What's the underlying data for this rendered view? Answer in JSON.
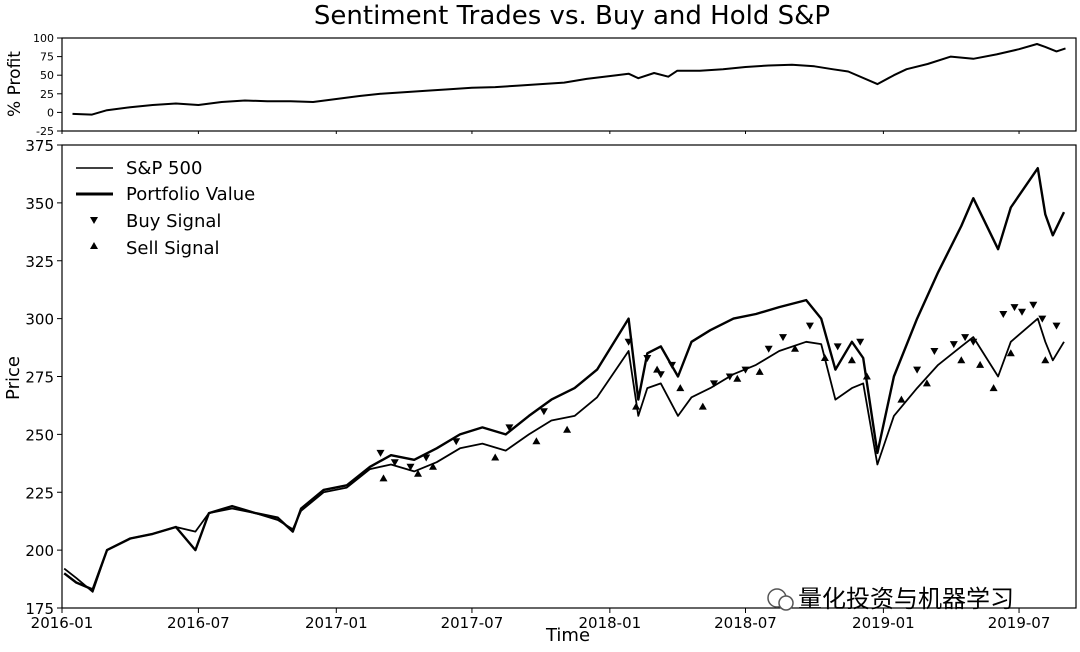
{
  "figure": {
    "title": "Sentiment Trades vs. Buy and Hold S&P",
    "watermark": "量化投资与机器学习"
  },
  "chart_data": [
    {
      "type": "line",
      "panel": "top",
      "ylabel": "% Profit",
      "xlabel": "",
      "ylim": [
        -25,
        100
      ],
      "yticks": [
        -25,
        0,
        25,
        50,
        75,
        100
      ],
      "xlim": [
        "2016-01-01",
        "2019-09-15"
      ],
      "x_tick_labels": "illegible",
      "grid": false,
      "series": [
        {
          "name": "% Profit",
          "x": [
            "2016-01-15",
            "2016-02-10",
            "2016-03-01",
            "2016-04-01",
            "2016-05-01",
            "2016-06-01",
            "2016-07-01",
            "2016-08-01",
            "2016-09-01",
            "2016-10-01",
            "2016-11-01",
            "2016-12-01",
            "2017-01-01",
            "2017-02-01",
            "2017-03-01",
            "2017-04-01",
            "2017-05-01",
            "2017-06-01",
            "2017-07-01",
            "2017-08-01",
            "2017-09-01",
            "2017-10-01",
            "2017-11-01",
            "2017-12-01",
            "2018-01-10",
            "2018-01-26",
            "2018-02-08",
            "2018-03-01",
            "2018-03-20",
            "2018-04-01",
            "2018-05-01",
            "2018-06-01",
            "2018-07-01",
            "2018-08-01",
            "2018-09-01",
            "2018-10-01",
            "2018-10-25",
            "2018-11-15",
            "2018-12-24",
            "2019-01-15",
            "2019-02-01",
            "2019-03-01",
            "2019-04-01",
            "2019-05-01",
            "2019-06-01",
            "2019-07-01",
            "2019-07-25",
            "2019-08-05",
            "2019-08-20",
            "2019-09-01"
          ],
          "values": [
            -2,
            -3,
            3,
            7,
            10,
            12,
            10,
            14,
            16,
            15,
            15,
            14,
            18,
            22,
            25,
            27,
            29,
            31,
            33,
            34,
            36,
            38,
            40,
            45,
            50,
            52,
            46,
            53,
            48,
            56,
            56,
            58,
            61,
            63,
            64,
            62,
            58,
            55,
            38,
            50,
            58,
            65,
            75,
            72,
            78,
            85,
            92,
            88,
            82,
            86
          ]
        }
      ]
    },
    {
      "type": "line",
      "panel": "bottom",
      "xlabel": "Time",
      "ylabel": "Price",
      "ylim": [
        175,
        375
      ],
      "yticks": [
        175,
        200,
        225,
        250,
        275,
        300,
        325,
        350,
        375
      ],
      "xlim": [
        "2016-01-01",
        "2019-09-15"
      ],
      "x_tick_labels": [
        "2016-01",
        "2016-07",
        "2017-01",
        "2017-07",
        "2018-01",
        "2018-07",
        "2019-01",
        "2019-07"
      ],
      "grid": false,
      "legend_position": "upper-left",
      "legend": [
        "S&P 500",
        "Portfolio Value",
        "Buy Signal",
        "Sell Signal"
      ],
      "series": [
        {
          "name": "S&P 500",
          "x": [
            "2016-01-04",
            "2016-01-20",
            "2016-02-11",
            "2016-03-01",
            "2016-04-01",
            "2016-05-01",
            "2016-06-01",
            "2016-06-27",
            "2016-07-15",
            "2016-08-15",
            "2016-09-15",
            "2016-10-15",
            "2016-11-04",
            "2016-11-15",
            "2016-12-15",
            "2017-01-15",
            "2017-02-15",
            "2017-03-15",
            "2017-04-15",
            "2017-05-15",
            "2017-06-15",
            "2017-07-15",
            "2017-08-15",
            "2017-09-15",
            "2017-10-15",
            "2017-11-15",
            "2017-12-15",
            "2018-01-26",
            "2018-02-08",
            "2018-02-20",
            "2018-03-10",
            "2018-04-02",
            "2018-04-20",
            "2018-05-15",
            "2018-06-15",
            "2018-07-15",
            "2018-08-15",
            "2018-09-20",
            "2018-10-10",
            "2018-10-29",
            "2018-11-20",
            "2018-12-05",
            "2018-12-24",
            "2019-01-15",
            "2019-02-15",
            "2019-03-15",
            "2019-04-15",
            "2019-05-01",
            "2019-06-03",
            "2019-06-20",
            "2019-07-26",
            "2019-08-05",
            "2019-08-15",
            "2019-08-30"
          ],
          "values": [
            192,
            188,
            182,
            200,
            205,
            207,
            210,
            208,
            216,
            218,
            216,
            213,
            209,
            217,
            225,
            227,
            235,
            237,
            234,
            238,
            244,
            246,
            243,
            250,
            256,
            258,
            266,
            286,
            258,
            270,
            272,
            258,
            266,
            270,
            276,
            280,
            286,
            290,
            289,
            265,
            270,
            272,
            237,
            258,
            270,
            280,
            288,
            292,
            275,
            290,
            300,
            290,
            282,
            290
          ]
        },
        {
          "name": "Portfolio Value",
          "x": [
            "2016-01-04",
            "2016-01-20",
            "2016-02-11",
            "2016-03-01",
            "2016-04-01",
            "2016-05-01",
            "2016-06-01",
            "2016-06-27",
            "2016-07-15",
            "2016-08-15",
            "2016-09-15",
            "2016-10-15",
            "2016-11-04",
            "2016-11-15",
            "2016-12-15",
            "2017-01-15",
            "2017-02-15",
            "2017-03-15",
            "2017-04-15",
            "2017-05-15",
            "2017-06-15",
            "2017-07-15",
            "2017-08-15",
            "2017-09-15",
            "2017-10-15",
            "2017-11-15",
            "2017-12-15",
            "2018-01-26",
            "2018-02-08",
            "2018-02-20",
            "2018-03-10",
            "2018-04-02",
            "2018-04-20",
            "2018-05-15",
            "2018-06-15",
            "2018-07-15",
            "2018-08-15",
            "2018-09-20",
            "2018-10-10",
            "2018-10-29",
            "2018-11-20",
            "2018-12-05",
            "2018-12-24",
            "2019-01-15",
            "2019-02-15",
            "2019-03-15",
            "2019-04-15",
            "2019-05-01",
            "2019-06-03",
            "2019-06-20",
            "2019-07-26",
            "2019-08-05",
            "2019-08-15",
            "2019-08-30"
          ],
          "values": [
            190,
            186,
            183,
            200,
            205,
            207,
            210,
            200,
            216,
            219,
            216,
            214,
            208,
            218,
            226,
            228,
            236,
            241,
            239,
            244,
            250,
            253,
            250,
            258,
            265,
            270,
            278,
            300,
            265,
            285,
            288,
            275,
            290,
            295,
            300,
            302,
            305,
            308,
            300,
            278,
            290,
            283,
            242,
            275,
            300,
            320,
            340,
            352,
            330,
            348,
            365,
            345,
            336,
            346
          ]
        }
      ],
      "markers": [
        {
          "name": "Buy Signal",
          "symbol": "triangle-down",
          "x": [
            "2017-03-01",
            "2017-03-20",
            "2017-04-10",
            "2017-05-01",
            "2017-06-10",
            "2017-08-20",
            "2017-10-05",
            "2018-01-26",
            "2018-02-20",
            "2018-03-10",
            "2018-03-25",
            "2018-05-20",
            "2018-06-10",
            "2018-07-01",
            "2018-08-01",
            "2018-08-20",
            "2018-09-25",
            "2018-11-01",
            "2018-12-01",
            "2019-02-15",
            "2019-03-10",
            "2019-04-05",
            "2019-04-20",
            "2019-05-01",
            "2019-06-10",
            "2019-06-25",
            "2019-07-05",
            "2019-07-20",
            "2019-08-01",
            "2019-08-20"
          ],
          "values": [
            242,
            238,
            236,
            240,
            247,
            253,
            260,
            290,
            283,
            276,
            280,
            272,
            275,
            278,
            287,
            292,
            297,
            288,
            290,
            278,
            286,
            289,
            292,
            290,
            302,
            305,
            303,
            306,
            300,
            297
          ]
        },
        {
          "name": "Sell Signal",
          "symbol": "triangle-up",
          "x": [
            "2017-03-05",
            "2017-04-20",
            "2017-05-10",
            "2017-08-01",
            "2017-09-25",
            "2017-11-05",
            "2018-02-05",
            "2018-03-05",
            "2018-04-05",
            "2018-05-05",
            "2018-06-20",
            "2018-07-20",
            "2018-09-05",
            "2018-10-15",
            "2018-11-20",
            "2018-12-10",
            "2019-01-25",
            "2019-02-28",
            "2019-04-15",
            "2019-05-10",
            "2019-05-28",
            "2019-06-20",
            "2019-08-05"
          ],
          "values": [
            231,
            233,
            236,
            240,
            247,
            252,
            262,
            278,
            270,
            262,
            274,
            277,
            287,
            283,
            282,
            275,
            265,
            272,
            282,
            280,
            270,
            285,
            282
          ]
        }
      ]
    }
  ]
}
